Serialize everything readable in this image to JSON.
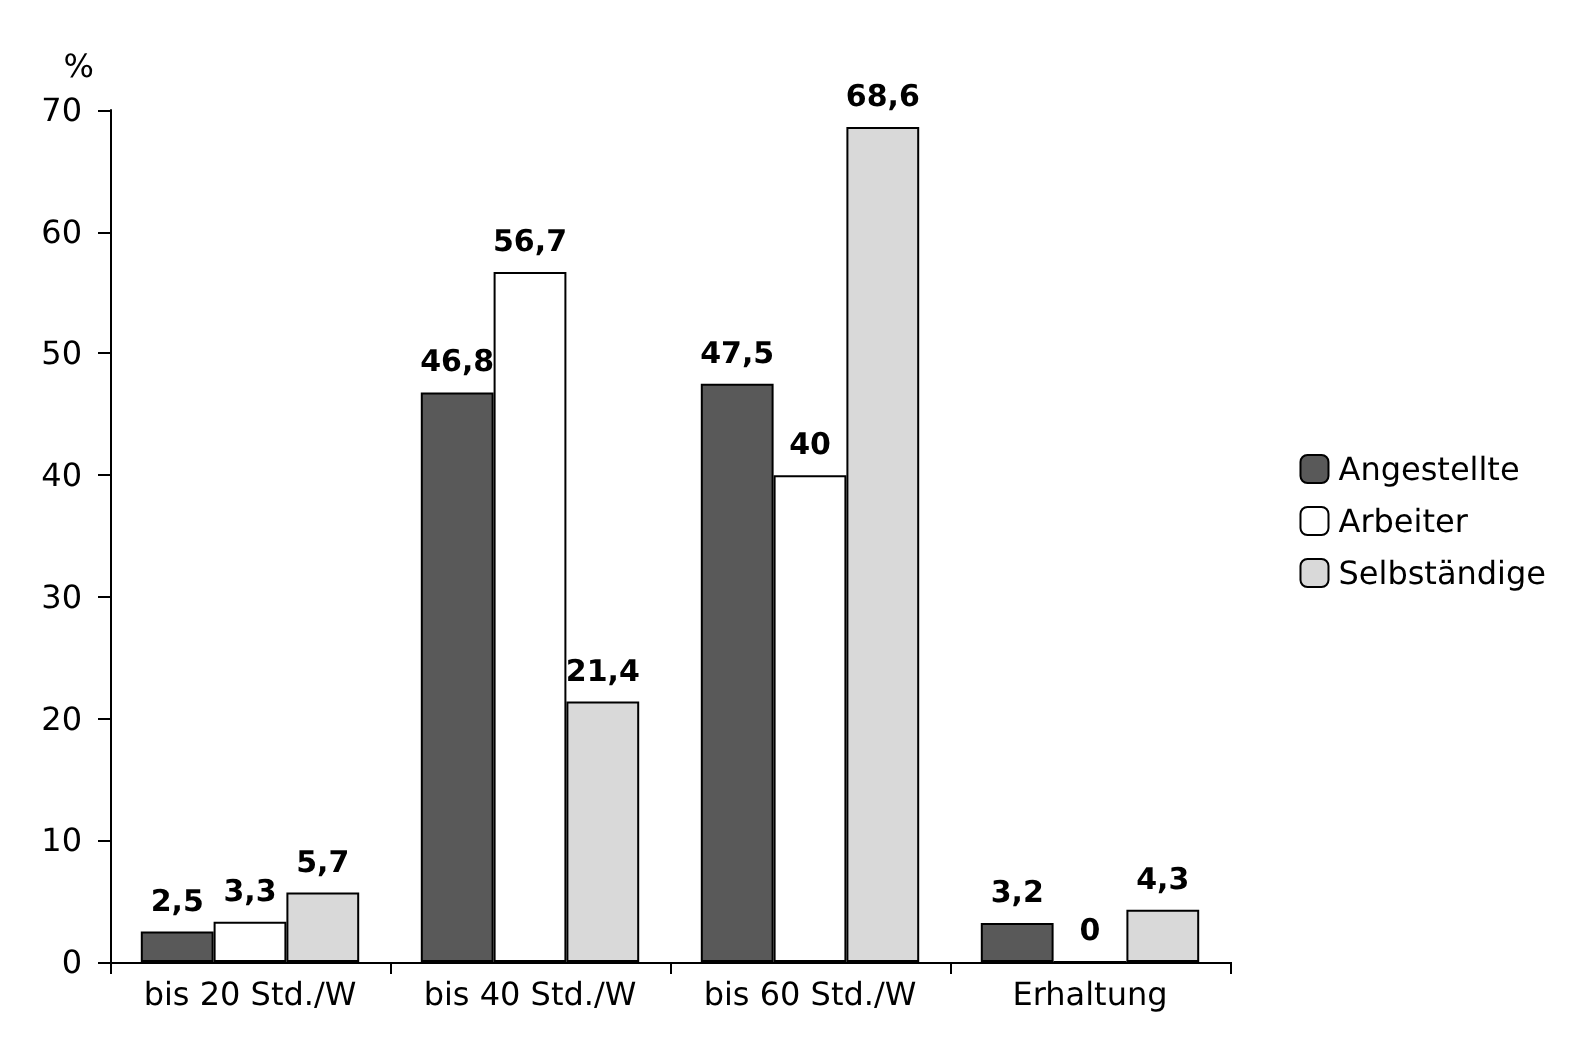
{
  "chart_data": {
    "type": "bar",
    "ylabel": "%",
    "categories": [
      "bis 20 Std./W",
      "bis 40 Std./W",
      "bis 60 Std./W",
      "Erhaltung"
    ],
    "series": [
      {
        "name": "Angestellte",
        "color": "#595959",
        "values": [
          2.5,
          46.8,
          47.5,
          3.2
        ],
        "value_labels": [
          "2,5",
          "46,8",
          "47,5",
          "3,2"
        ]
      },
      {
        "name": "Arbeiter",
        "color": "#ffffff",
        "values": [
          3.3,
          56.7,
          40,
          0
        ],
        "value_labels": [
          "3,3",
          "56,7",
          "40",
          "0"
        ]
      },
      {
        "name": "Selbständige",
        "color": "#d9d9d9",
        "values": [
          5.7,
          21.4,
          68.6,
          4.3
        ],
        "value_labels": [
          "5,7",
          "21,4",
          "68,6",
          "4,3"
        ]
      }
    ],
    "ylim": [
      0,
      70
    ],
    "yticks": [
      0,
      10,
      20,
      30,
      40,
      50,
      60,
      70
    ],
    "grid": false,
    "legend": "right"
  }
}
